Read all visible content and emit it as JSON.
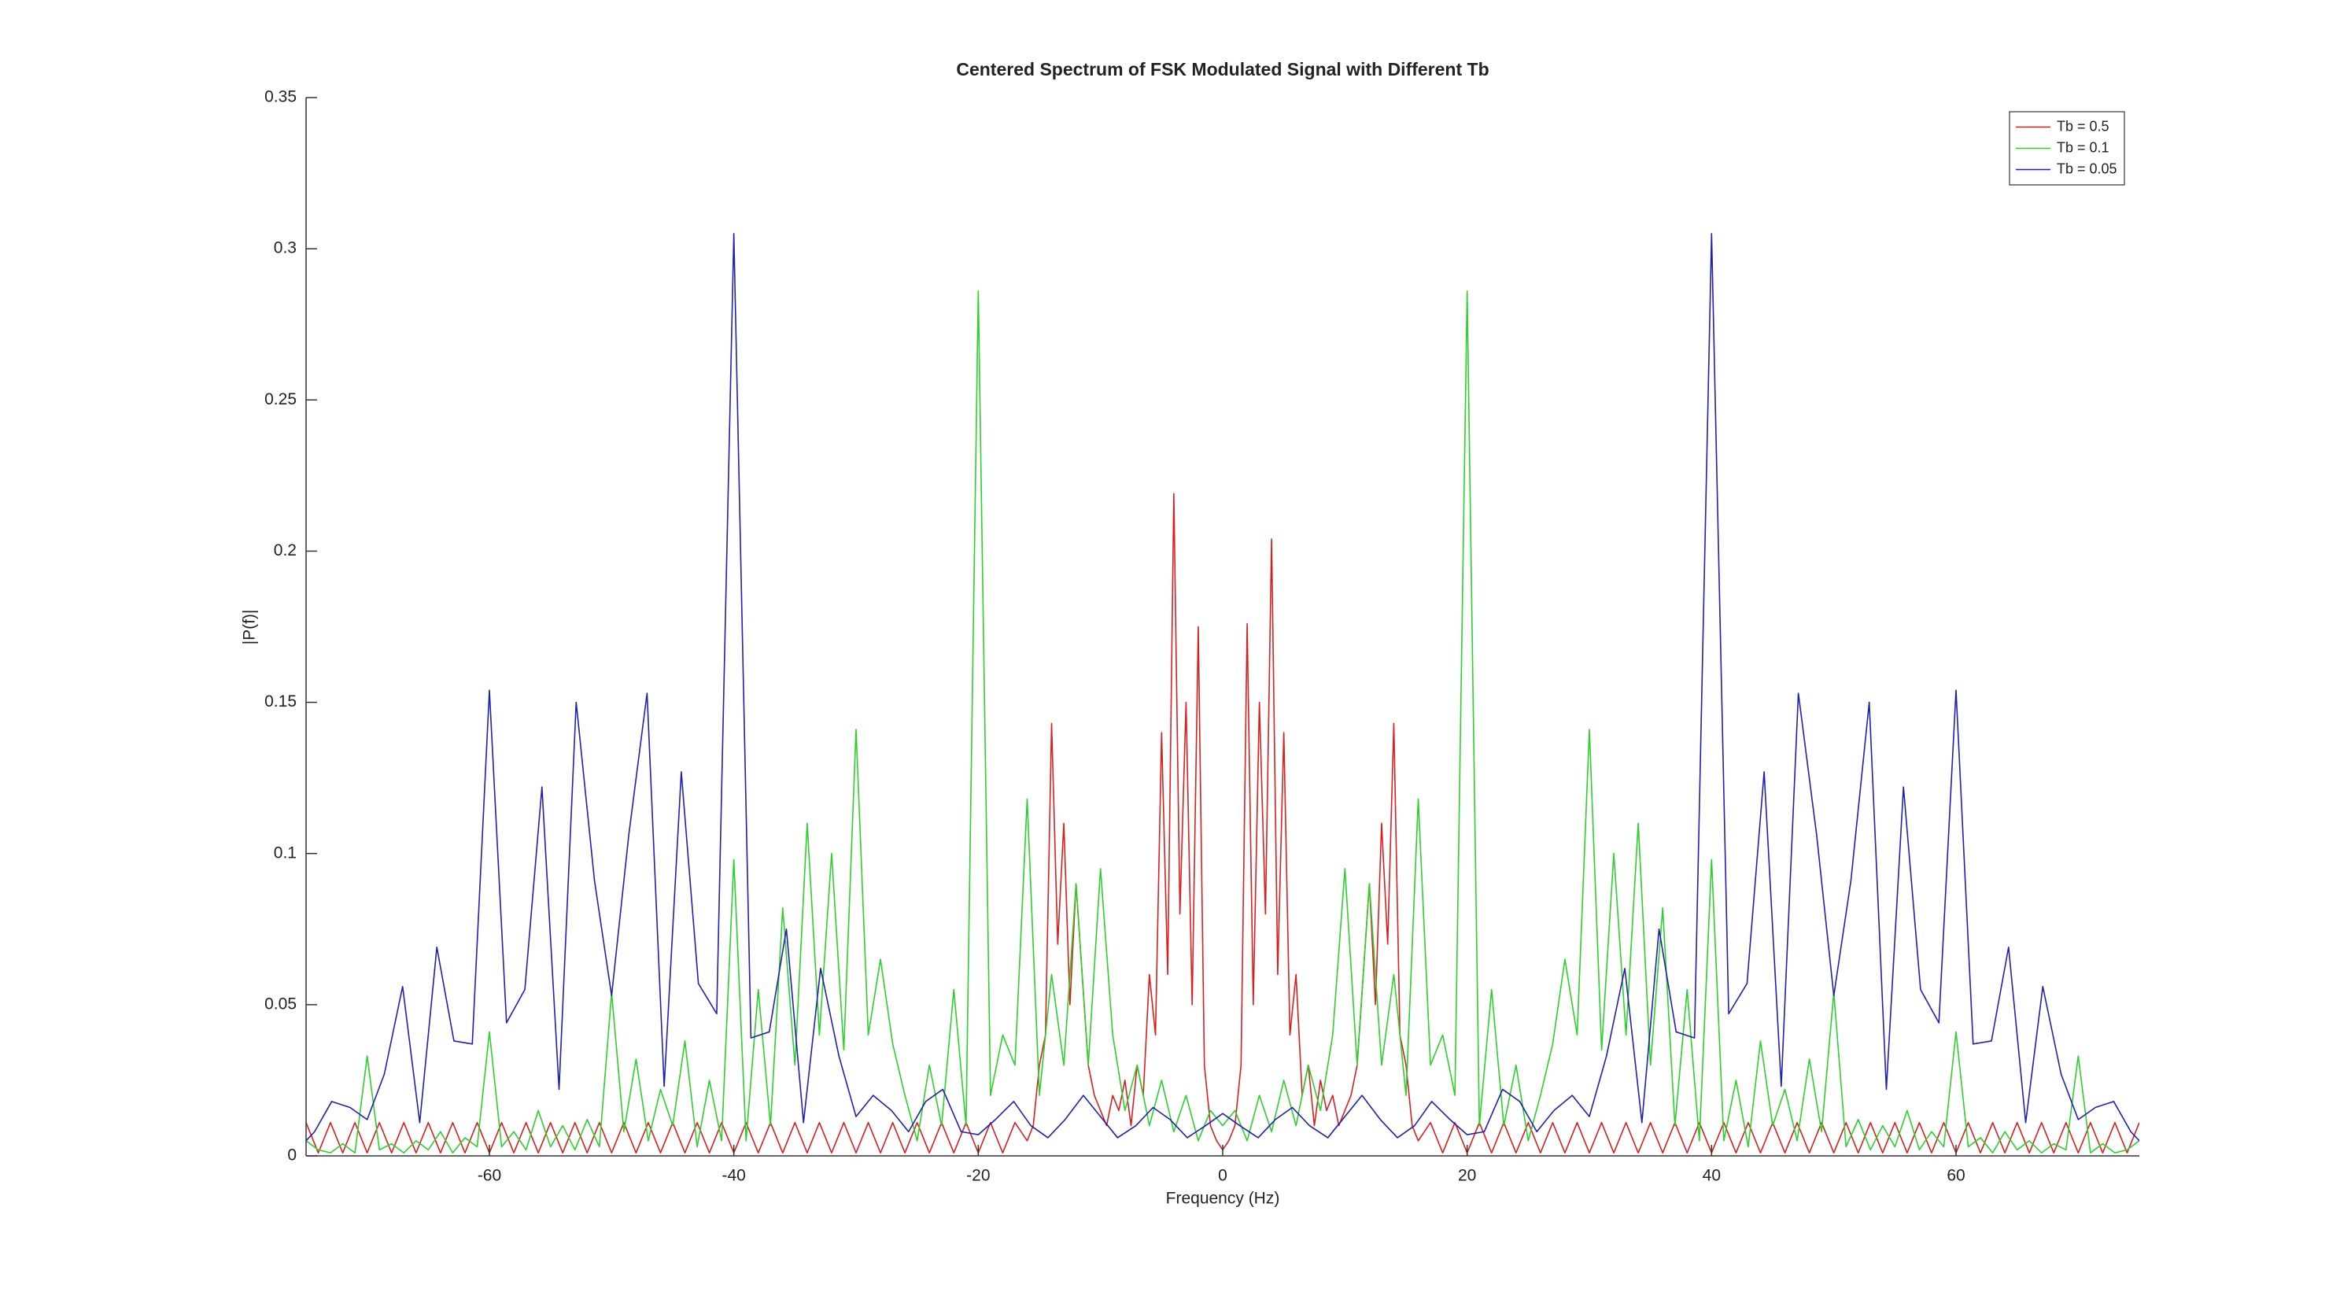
{
  "chart_data": {
    "type": "line",
    "title": "Centered Spectrum of FSK Modulated Signal with Different Tb",
    "x_label": "Frequency (Hz)",
    "y_label": "|P(f)|",
    "xlim": [
      -75,
      75
    ],
    "ylim": [
      0,
      0.35
    ],
    "xticks": [
      -60,
      -40,
      -20,
      0,
      20,
      40,
      60
    ],
    "yticks": [
      0,
      0.05,
      0.1,
      0.15,
      0.2,
      0.25,
      0.3,
      0.35
    ],
    "legend": "northeast",
    "series": [
      {
        "name": "Tb = 0.5",
        "color": "#d62020",
        "x": [
          -75,
          -74,
          -73,
          -72,
          -71,
          -70,
          -69,
          -68,
          -67,
          -66,
          -65,
          -64,
          -63,
          -62,
          -61,
          -60,
          -59,
          -58,
          -57,
          -56,
          -55,
          -54,
          -53,
          -52,
          -51,
          -50,
          -49,
          -48,
          -47,
          -46,
          -45,
          -44,
          -43,
          -42,
          -41,
          -40,
          -39,
          -38,
          -37,
          -36,
          -35,
          -34,
          -33,
          -32,
          -31,
          -30,
          -29,
          -28,
          -27,
          -26,
          -25,
          -24,
          -23,
          -22,
          -21,
          -20,
          -19,
          -18,
          -17,
          -16,
          -15.5,
          -15,
          -14.5,
          -14,
          -13.5,
          -13,
          -12.5,
          -12,
          -11.5,
          -11,
          -10.5,
          -10,
          -9.5,
          -9,
          -8.5,
          -8,
          -7.5,
          -7,
          -6.5,
          -6,
          -5.5,
          -5,
          -4.5,
          -4,
          -3.5,
          -3,
          -2.5,
          -2,
          -1.5,
          -1,
          -0.5,
          0,
          0.5,
          1,
          1.5,
          2,
          2.5,
          3,
          3.5,
          4,
          4.5,
          5,
          5.5,
          6,
          6.5,
          7,
          7.5,
          8,
          8.5,
          9,
          9.5,
          10,
          10.5,
          11,
          11.5,
          12,
          12.5,
          13,
          13.5,
          14,
          14.5,
          15,
          15.5,
          16,
          17,
          18,
          19,
          20,
          21,
          22,
          23,
          24,
          25,
          26,
          27,
          28,
          29,
          30,
          31,
          32,
          33,
          34,
          35,
          36,
          37,
          38,
          39,
          40,
          41,
          42,
          43,
          44,
          45,
          46,
          47,
          48,
          49,
          50,
          51,
          52,
          53,
          54,
          55,
          56,
          57,
          58,
          59,
          60,
          61,
          62,
          63,
          64,
          65,
          66,
          67,
          68,
          69,
          70,
          71,
          72,
          73,
          74,
          75
        ],
        "values": [
          0.011,
          0.001,
          0.011,
          0.001,
          0.011,
          0.001,
          0.011,
          0.001,
          0.011,
          0.001,
          0.011,
          0.001,
          0.011,
          0.001,
          0.011,
          0.001,
          0.011,
          0.001,
          0.011,
          0.001,
          0.011,
          0.001,
          0.011,
          0.001,
          0.011,
          0.001,
          0.011,
          0.001,
          0.011,
          0.001,
          0.011,
          0.001,
          0.011,
          0.001,
          0.011,
          0.001,
          0.011,
          0.001,
          0.011,
          0.001,
          0.011,
          0.001,
          0.011,
          0.001,
          0.011,
          0.001,
          0.011,
          0.001,
          0.011,
          0.001,
          0.011,
          0.001,
          0.011,
          0.001,
          0.011,
          0.001,
          0.011,
          0.001,
          0.011,
          0.005,
          0.01,
          0.03,
          0.04,
          0.143,
          0.07,
          0.11,
          0.05,
          0.09,
          0.06,
          0.03,
          0.02,
          0.015,
          0.01,
          0.02,
          0.015,
          0.025,
          0.01,
          0.03,
          0.02,
          0.06,
          0.04,
          0.14,
          0.06,
          0.219,
          0.08,
          0.15,
          0.05,
          0.175,
          0.03,
          0.01,
          0.005,
          0.002,
          0.005,
          0.01,
          0.03,
          0.176,
          0.05,
          0.15,
          0.08,
          0.204,
          0.06,
          0.14,
          0.04,
          0.06,
          0.02,
          0.03,
          0.01,
          0.025,
          0.015,
          0.02,
          0.01,
          0.015,
          0.02,
          0.03,
          0.06,
          0.09,
          0.05,
          0.11,
          0.07,
          0.143,
          0.04,
          0.03,
          0.01,
          0.005,
          0.011,
          0.001,
          0.011,
          0.001,
          0.011,
          0.001,
          0.011,
          0.001,
          0.011,
          0.001,
          0.011,
          0.001,
          0.011,
          0.001,
          0.011,
          0.001,
          0.011,
          0.001,
          0.011,
          0.001,
          0.011,
          0.001,
          0.011,
          0.001,
          0.011,
          0.001,
          0.011,
          0.001,
          0.011,
          0.001,
          0.011,
          0.001,
          0.011,
          0.001,
          0.011,
          0.001,
          0.011,
          0.001,
          0.011,
          0.001,
          0.011,
          0.001,
          0.011,
          0.001,
          0.011,
          0.001,
          0.011,
          0.001,
          0.011,
          0.001,
          0.011,
          0.001,
          0.011,
          0.001,
          0.011,
          0.001,
          0.011,
          0.001,
          0.011
        ]
      },
      {
        "name": "Tb = 0.1",
        "color": "#2ccf2c",
        "x": [
          -75,
          -74,
          -73,
          -72,
          -71,
          -70,
          -69,
          -68,
          -67,
          -66,
          -65,
          -64,
          -63,
          -62,
          -61,
          -60,
          -59,
          -58,
          -57,
          -56,
          -55,
          -54,
          -53,
          -52,
          -51,
          -50,
          -49,
          -48,
          -47,
          -46,
          -45,
          -44,
          -43,
          -42,
          -41,
          -40,
          -39,
          -38,
          -37,
          -36,
          -35,
          -34,
          -33,
          -32,
          -31,
          -30,
          -29,
          -28,
          -27,
          -26,
          -25,
          -24,
          -23,
          -22,
          -21,
          -20,
          -19,
          -18,
          -17,
          -16,
          -15,
          -14,
          -13,
          -12,
          -11,
          -10,
          -9,
          -8,
          -7,
          -6,
          -5,
          -4,
          -3,
          -2,
          -1,
          0,
          1,
          2,
          3,
          4,
          5,
          6,
          7,
          8,
          9,
          10,
          11,
          12,
          13,
          14,
          15,
          16,
          17,
          18,
          19,
          20,
          21,
          22,
          23,
          24,
          25,
          26,
          27,
          28,
          29,
          30,
          31,
          32,
          33,
          34,
          35,
          36,
          37,
          38,
          39,
          40,
          41,
          42,
          43,
          44,
          45,
          46,
          47,
          48,
          49,
          50,
          51,
          52,
          53,
          54,
          55,
          56,
          57,
          58,
          59,
          60,
          61,
          62,
          63,
          64,
          65,
          66,
          67,
          68,
          69,
          70,
          71,
          72,
          73,
          74,
          75
        ],
        "values": [
          0.005,
          0.002,
          0.001,
          0.004,
          0.001,
          0.033,
          0.002,
          0.004,
          0.001,
          0.005,
          0.002,
          0.008,
          0.001,
          0.006,
          0.003,
          0.041,
          0.003,
          0.008,
          0.002,
          0.015,
          0.003,
          0.01,
          0.002,
          0.012,
          0.003,
          0.054,
          0.008,
          0.032,
          0.005,
          0.022,
          0.01,
          0.038,
          0.003,
          0.025,
          0.005,
          0.098,
          0.005,
          0.055,
          0.01,
          0.082,
          0.03,
          0.11,
          0.04,
          0.1,
          0.035,
          0.141,
          0.04,
          0.065,
          0.037,
          0.02,
          0.005,
          0.03,
          0.01,
          0.055,
          0.01,
          0.286,
          0.02,
          0.04,
          0.03,
          0.118,
          0.02,
          0.06,
          0.03,
          0.09,
          0.03,
          0.095,
          0.04,
          0.015,
          0.03,
          0.01,
          0.025,
          0.008,
          0.02,
          0.005,
          0.015,
          0.01,
          0.015,
          0.005,
          0.02,
          0.008,
          0.025,
          0.01,
          0.03,
          0.015,
          0.04,
          0.095,
          0.03,
          0.09,
          0.03,
          0.06,
          0.02,
          0.118,
          0.03,
          0.04,
          0.02,
          0.286,
          0.01,
          0.055,
          0.01,
          0.03,
          0.005,
          0.02,
          0.037,
          0.065,
          0.04,
          0.141,
          0.035,
          0.1,
          0.04,
          0.11,
          0.03,
          0.082,
          0.01,
          0.055,
          0.005,
          0.098,
          0.005,
          0.025,
          0.003,
          0.038,
          0.01,
          0.022,
          0.005,
          0.032,
          0.008,
          0.054,
          0.003,
          0.012,
          0.002,
          0.01,
          0.003,
          0.015,
          0.002,
          0.008,
          0.003,
          0.041,
          0.003,
          0.006,
          0.001,
          0.008,
          0.002,
          0.005,
          0.001,
          0.004,
          0.002,
          0.033,
          0.001,
          0.004,
          0.001,
          0.002,
          0.005
        ]
      },
      {
        "name": "Tb = 0.05",
        "color": "#2020b0",
        "x": [
          -75,
          -74.3,
          -72.9,
          -71.4,
          -70,
          -68.6,
          -67.1,
          -65.7,
          -64.3,
          -62.9,
          -61.4,
          -60,
          -58.6,
          -57.1,
          -55.7,
          -54.3,
          -52.9,
          -51.4,
          -50,
          -48.6,
          -47.1,
          -45.7,
          -44.3,
          -42.9,
          -41.4,
          -40,
          -38.6,
          -37.1,
          -35.7,
          -34.3,
          -32.9,
          -31.4,
          -30,
          -28.6,
          -27.1,
          -25.7,
          -24.3,
          -22.9,
          -21.4,
          -20,
          -18.6,
          -17.1,
          -15.7,
          -14.3,
          -12.9,
          -11.4,
          -10,
          -8.6,
          -7.1,
          -5.7,
          -4.3,
          -2.9,
          -1.4,
          0,
          1.4,
          2.9,
          4.3,
          5.7,
          7.1,
          8.6,
          10,
          11.4,
          12.9,
          14.3,
          15.7,
          17.1,
          18.6,
          20,
          21.4,
          22.9,
          24.3,
          25.7,
          27.1,
          28.6,
          30,
          31.4,
          32.9,
          34.3,
          35.7,
          37.1,
          38.6,
          40,
          41.4,
          42.9,
          44.3,
          45.7,
          47.1,
          48.6,
          50,
          51.4,
          52.9,
          54.3,
          55.7,
          57.1,
          58.6,
          60,
          61.4,
          62.9,
          64.3,
          65.7,
          67.1,
          68.6,
          70,
          71.4,
          72.9,
          74.3,
          75
        ],
        "values": [
          0.005,
          0.008,
          0.018,
          0.016,
          0.012,
          0.027,
          0.056,
          0.011,
          0.069,
          0.038,
          0.037,
          0.154,
          0.044,
          0.055,
          0.122,
          0.022,
          0.15,
          0.091,
          0.053,
          0.106,
          0.153,
          0.023,
          0.127,
          0.057,
          0.047,
          0.305,
          0.039,
          0.041,
          0.075,
          0.011,
          0.062,
          0.033,
          0.013,
          0.02,
          0.015,
          0.008,
          0.018,
          0.022,
          0.008,
          0.007,
          0.012,
          0.018,
          0.01,
          0.006,
          0.012,
          0.02,
          0.013,
          0.006,
          0.01,
          0.016,
          0.012,
          0.006,
          0.01,
          0.014,
          0.01,
          0.006,
          0.012,
          0.016,
          0.01,
          0.006,
          0.013,
          0.02,
          0.012,
          0.006,
          0.01,
          0.018,
          0.012,
          0.007,
          0.008,
          0.022,
          0.018,
          0.008,
          0.015,
          0.02,
          0.013,
          0.033,
          0.062,
          0.011,
          0.075,
          0.041,
          0.039,
          0.305,
          0.047,
          0.057,
          0.127,
          0.023,
          0.153,
          0.106,
          0.053,
          0.091,
          0.15,
          0.022,
          0.122,
          0.055,
          0.044,
          0.154,
          0.037,
          0.038,
          0.069,
          0.011,
          0.056,
          0.027,
          0.012,
          0.016,
          0.018,
          0.008,
          0.005
        ]
      }
    ]
  }
}
